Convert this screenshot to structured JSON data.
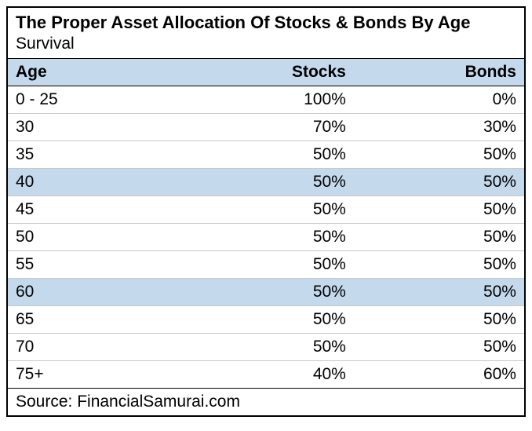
{
  "title": "The Proper Asset Allocation Of Stocks & Bonds By Age",
  "subtitle": "Survival",
  "columns": [
    "Age",
    "Stocks",
    "Bonds"
  ],
  "rows": [
    {
      "age": "0 - 25",
      "stocks": "100%",
      "bonds": "0%",
      "highlighted": false
    },
    {
      "age": "30",
      "stocks": "70%",
      "bonds": "30%",
      "highlighted": false
    },
    {
      "age": "35",
      "stocks": "50%",
      "bonds": "50%",
      "highlighted": false
    },
    {
      "age": "40",
      "stocks": "50%",
      "bonds": "50%",
      "highlighted": true
    },
    {
      "age": "45",
      "stocks": "50%",
      "bonds": "50%",
      "highlighted": false
    },
    {
      "age": "50",
      "stocks": "50%",
      "bonds": "50%",
      "highlighted": false
    },
    {
      "age": "55",
      "stocks": "50%",
      "bonds": "50%",
      "highlighted": false
    },
    {
      "age": "60",
      "stocks": "50%",
      "bonds": "50%",
      "highlighted": true
    },
    {
      "age": "65",
      "stocks": "50%",
      "bonds": "50%",
      "highlighted": false
    },
    {
      "age": "70",
      "stocks": "50%",
      "bonds": "50%",
      "highlighted": false
    },
    {
      "age": "75+",
      "stocks": "40%",
      "bonds": "60%",
      "highlighted": false
    }
  ],
  "source": "Source: FinancialSamurai.com",
  "style": {
    "type": "table",
    "header_bg": "#c5d9ed",
    "highlight_bg": "#c5d9ed",
    "border_color": "#000000",
    "row_border_color": "#c8c8c8",
    "text_color": "#000000",
    "background_color": "#ffffff",
    "title_fontsize": 22,
    "title_fontweight": "bold",
    "subtitle_fontsize": 21,
    "header_fontsize": 21,
    "header_fontweight": "bold",
    "row_fontsize": 21,
    "col_alignments": [
      "left",
      "right",
      "right"
    ]
  }
}
